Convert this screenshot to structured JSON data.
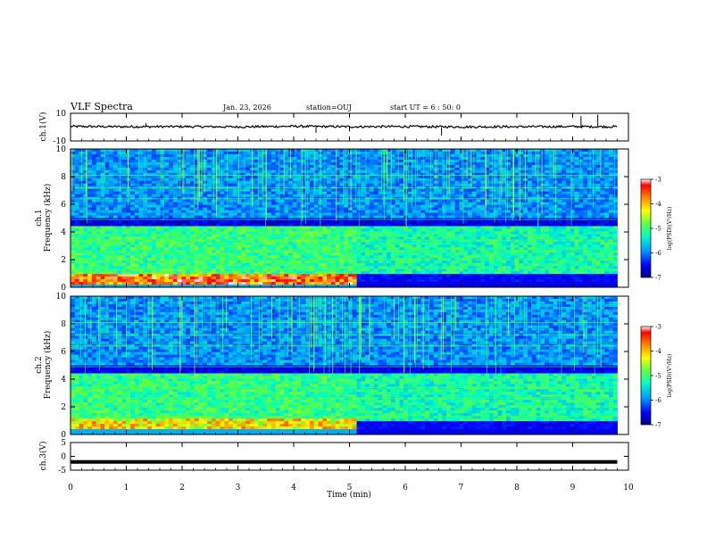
{
  "header": {
    "title": "VLF Spectra",
    "date": "Jan. 23, 2026",
    "station": "station=OUJ",
    "start_ut": "start  UT =  6 : 50: 0"
  },
  "chart_data": [
    {
      "type": "line",
      "name": "ch1-waveform",
      "ylabel": "ch.1(V)",
      "ylim": [
        -10,
        10
      ],
      "yticks": [
        10,
        -10
      ],
      "xlim": [
        0,
        10
      ],
      "x": [
        0,
        1,
        2,
        3,
        4,
        5,
        6,
        7,
        8,
        9,
        9.8
      ],
      "y": [
        0.5,
        0.3,
        0.4,
        0.2,
        0.6,
        0.3,
        0.4,
        0.2,
        0.3,
        0.4,
        0.3
      ]
    },
    {
      "type": "heatmap",
      "name": "ch1-spectrogram",
      "ylabel": "ch.1\nFrequency (kHz)",
      "ylim": [
        0,
        10
      ],
      "yticks": [
        10,
        8,
        6,
        4,
        2,
        0
      ],
      "xlim": [
        0,
        10
      ],
      "data_end_min": 9.8,
      "colorbar": {
        "label": "log(PSD)(V²/Hz)",
        "range": [
          -7,
          -3
        ],
        "ticks": [
          -3,
          -4,
          -5,
          -6,
          -7
        ]
      }
    },
    {
      "type": "heatmap",
      "name": "ch2-spectrogram",
      "ylabel": "ch.2\nFrequency (kHz)",
      "ylim": [
        0,
        10
      ],
      "yticks": [
        10,
        8,
        6,
        4,
        2,
        0
      ],
      "xlim": [
        0,
        10
      ],
      "data_end_min": 9.8,
      "colorbar": {
        "label": "log(PSD)(V²/Hz)",
        "range": [
          -7,
          -3
        ],
        "ticks": [
          -3,
          -4,
          -5,
          -6,
          -7
        ]
      }
    },
    {
      "type": "line",
      "name": "ch3-waveform",
      "ylabel": "ch.3(V)",
      "ylim": [
        -5,
        5
      ],
      "yticks": [
        5,
        0,
        -5
      ],
      "xlim": [
        0,
        10
      ],
      "x": [
        0,
        9.8
      ],
      "y": [
        -2,
        -2
      ]
    }
  ],
  "xaxis": {
    "label": "Time (min)",
    "ticks": [
      "0",
      "1",
      "2",
      "3",
      "4",
      "5",
      "6",
      "7",
      "8",
      "9",
      "10"
    ]
  },
  "colors": {
    "colormap": [
      "#000080",
      "#0000ff",
      "#00a0ff",
      "#00ffc0",
      "#60ff40",
      "#ffff00",
      "#ff8000",
      "#ff0000",
      "#ffffff"
    ]
  }
}
